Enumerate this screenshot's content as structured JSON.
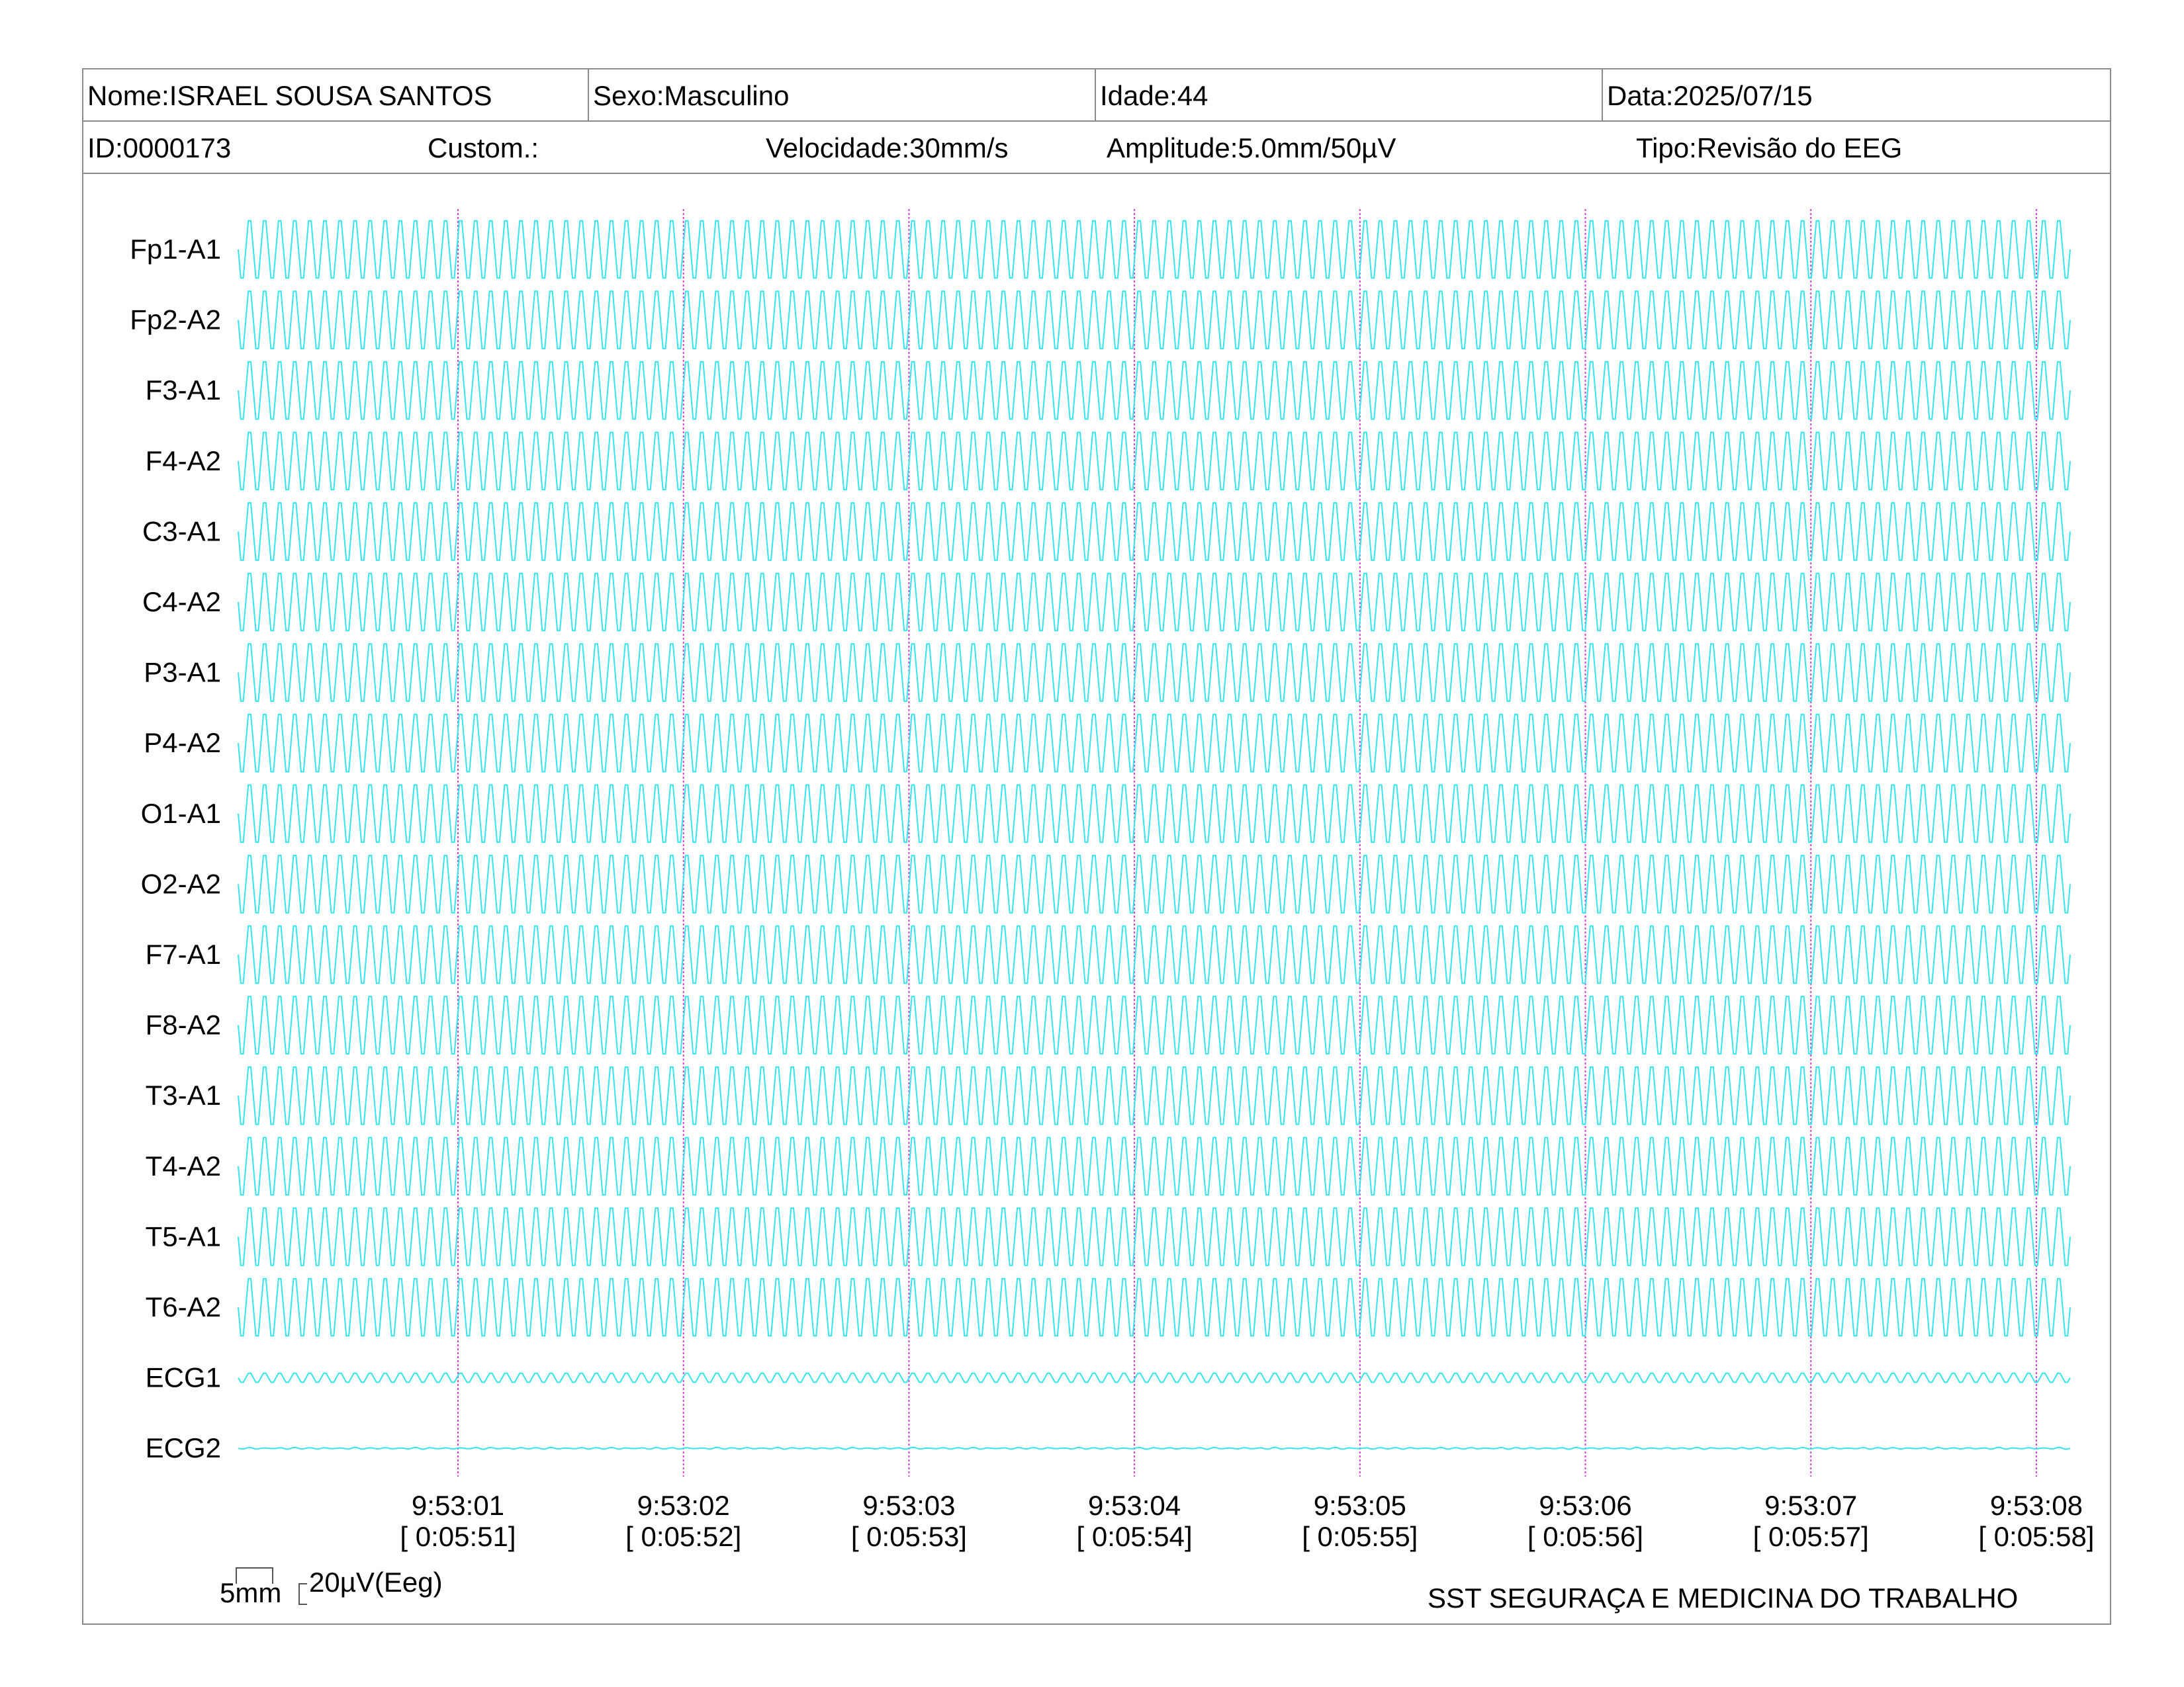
{
  "header": {
    "name": "Nome:ISRAEL SOUSA SANTOS",
    "sex": "Sexo:Masculino",
    "age": "Idade:44",
    "date": "Data:2025/07/15",
    "id": "ID:0000173",
    "custom": "Custom.:",
    "speed": "Velocidade:30mm/s",
    "amplitude": "Amplitude:5.0mm/50µV",
    "type": "Tipo:Revisão do EEG"
  },
  "footer": {
    "scale_mm": "5mm",
    "scale_uv": "20µV(Eeg)",
    "organization": "SST SEGURAÇA E MEDICINA DO TRABALHO"
  },
  "colors": {
    "trace": "#33e5ee",
    "time_marker": "#d23fd2",
    "frame": "#8a8a8a"
  },
  "chart_data": {
    "type": "line",
    "title": "",
    "xlabel": "",
    "ylabel": "",
    "grid": false,
    "channels": [
      "Fp1-A1",
      "Fp2-A2",
      "F3-A1",
      "F4-A2",
      "C3-A1",
      "C4-A2",
      "P3-A1",
      "P4-A2",
      "O1-A1",
      "O2-A2",
      "F7-A1",
      "F8-A2",
      "T3-A1",
      "T4-A2",
      "T5-A1",
      "T6-A2",
      "ECG1",
      "ECG2"
    ],
    "time_marks": [
      {
        "clock": "9:53:01",
        "elapsed": "[ 0:05:51]"
      },
      {
        "clock": "9:53:02",
        "elapsed": "[ 0:05:52]"
      },
      {
        "clock": "9:53:03",
        "elapsed": "[ 0:05:53]"
      },
      {
        "clock": "9:53:04",
        "elapsed": "[ 0:05:54]"
      },
      {
        "clock": "9:53:05",
        "elapsed": "[ 0:05:55]"
      },
      {
        "clock": "9:53:06",
        "elapsed": "[ 0:05:56]"
      },
      {
        "clock": "9:53:07",
        "elapsed": "[ 0:05:57]"
      },
      {
        "clock": "9:53:08",
        "elapsed": "[ 0:05:58]"
      }
    ],
    "series": [
      {
        "name": "Fp1-A1",
        "dominant_freq_hz": 15,
        "amplitude_uv": 95,
        "kind": "eeg"
      },
      {
        "name": "Fp2-A2",
        "dominant_freq_hz": 15,
        "amplitude_uv": 95,
        "kind": "eeg"
      },
      {
        "name": "F3-A1",
        "dominant_freq_hz": 15,
        "amplitude_uv": 95,
        "kind": "eeg"
      },
      {
        "name": "F4-A2",
        "dominant_freq_hz": 15,
        "amplitude_uv": 95,
        "kind": "eeg"
      },
      {
        "name": "C3-A1",
        "dominant_freq_hz": 15,
        "amplitude_uv": 95,
        "kind": "eeg"
      },
      {
        "name": "C4-A2",
        "dominant_freq_hz": 15,
        "amplitude_uv": 95,
        "kind": "eeg"
      },
      {
        "name": "P3-A1",
        "dominant_freq_hz": 15,
        "amplitude_uv": 95,
        "kind": "eeg"
      },
      {
        "name": "P4-A2",
        "dominant_freq_hz": 15,
        "amplitude_uv": 95,
        "kind": "eeg"
      },
      {
        "name": "O1-A1",
        "dominant_freq_hz": 15,
        "amplitude_uv": 95,
        "kind": "eeg"
      },
      {
        "name": "O2-A2",
        "dominant_freq_hz": 15,
        "amplitude_uv": 95,
        "kind": "eeg"
      },
      {
        "name": "F7-A1",
        "dominant_freq_hz": 15,
        "amplitude_uv": 95,
        "kind": "eeg"
      },
      {
        "name": "F8-A2",
        "dominant_freq_hz": 15,
        "amplitude_uv": 95,
        "kind": "eeg"
      },
      {
        "name": "T3-A1",
        "dominant_freq_hz": 15,
        "amplitude_uv": 95,
        "kind": "eeg"
      },
      {
        "name": "T4-A2",
        "dominant_freq_hz": 15,
        "amplitude_uv": 95,
        "kind": "eeg"
      },
      {
        "name": "T5-A1",
        "dominant_freq_hz": 15,
        "amplitude_uv": 95,
        "kind": "eeg"
      },
      {
        "name": "T6-A2",
        "dominant_freq_hz": 15,
        "amplitude_uv": 95,
        "kind": "eeg"
      },
      {
        "name": "ECG1",
        "dominant_freq_hz": 15,
        "amplitude_uv": 15,
        "kind": "ecg"
      },
      {
        "name": "ECG2",
        "dominant_freq_hz": 15,
        "amplitude_uv": 3,
        "kind": "ecg"
      }
    ]
  }
}
